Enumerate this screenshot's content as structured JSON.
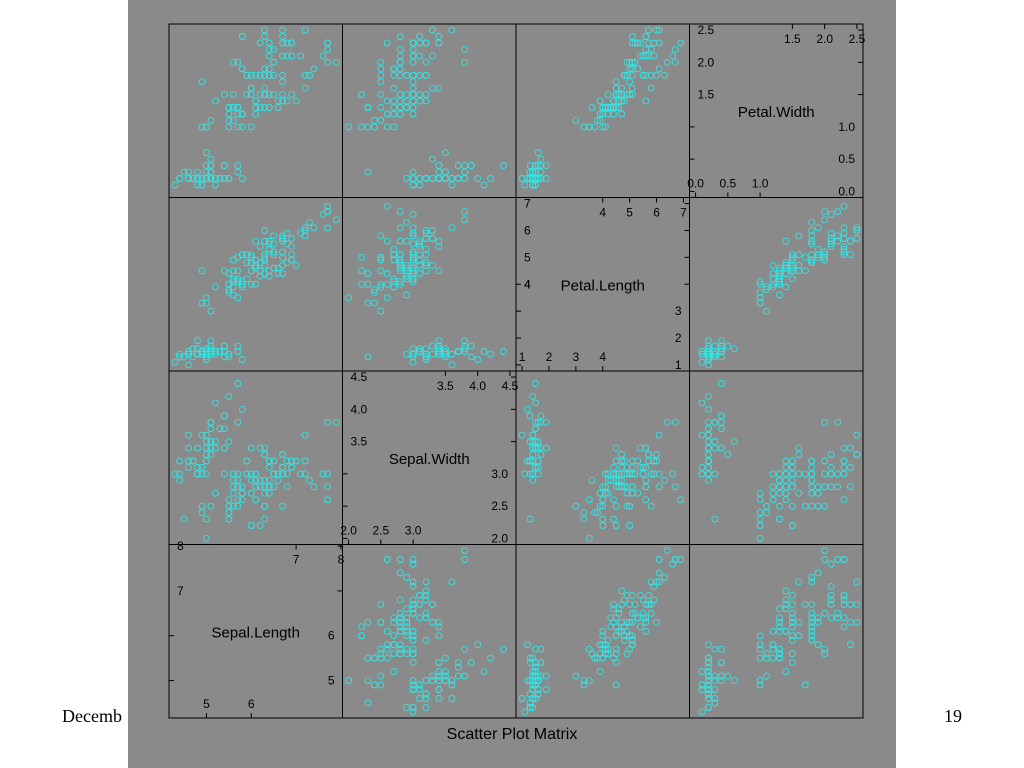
{
  "slide": {
    "footer_left": "Decemb",
    "page_number": "19"
  },
  "colors": {
    "panel_background": "#8a8a8a",
    "point": "#33e5e5",
    "frame": "#000000"
  },
  "chart_data": {
    "type": "scatter",
    "subtype": "scatter-matrix",
    "xlabel": "Scatter Plot Matrix",
    "marker": "open-circle",
    "variables": [
      {
        "name": "Sepal.Length",
        "range": [
          4.3,
          7.9
        ],
        "ticks_upper": [
          7,
          8
        ],
        "ticks_lower": [
          5,
          6
        ]
      },
      {
        "name": "Sepal.Width",
        "range": [
          2.0,
          4.5
        ],
        "ticks_upper": [
          3.5,
          4.0,
          4.5
        ],
        "ticks_lower": [
          2.0,
          2.5,
          3.0
        ]
      },
      {
        "name": "Petal.Length",
        "range": [
          1.0,
          7.0
        ],
        "ticks_upper": [
          4,
          5,
          6,
          7
        ],
        "ticks_lower": [
          1,
          2,
          3,
          4
        ]
      },
      {
        "name": "Petal.Width",
        "range": [
          0.0,
          2.5
        ],
        "ticks_upper": [
          1.5,
          2.0,
          2.5
        ],
        "ticks_lower": [
          0.0,
          0.5,
          1.0
        ]
      }
    ],
    "columns": [
      "Sepal.Length",
      "Sepal.Width",
      "Petal.Length",
      "Petal.Width"
    ],
    "points": [
      [
        5.1,
        3.5,
        1.4,
        0.2
      ],
      [
        4.9,
        3.0,
        1.4,
        0.2
      ],
      [
        4.7,
        3.2,
        1.3,
        0.2
      ],
      [
        4.6,
        3.1,
        1.5,
        0.2
      ],
      [
        5.0,
        3.6,
        1.4,
        0.2
      ],
      [
        5.4,
        3.9,
        1.7,
        0.4
      ],
      [
        4.6,
        3.4,
        1.4,
        0.3
      ],
      [
        5.0,
        3.4,
        1.5,
        0.2
      ],
      [
        4.4,
        2.9,
        1.4,
        0.2
      ],
      [
        4.9,
        3.1,
        1.5,
        0.1
      ],
      [
        5.4,
        3.7,
        1.5,
        0.2
      ],
      [
        4.8,
        3.4,
        1.6,
        0.2
      ],
      [
        4.8,
        3.0,
        1.4,
        0.1
      ],
      [
        4.3,
        3.0,
        1.1,
        0.1
      ],
      [
        5.8,
        4.0,
        1.2,
        0.2
      ],
      [
        5.7,
        4.4,
        1.5,
        0.4
      ],
      [
        5.4,
        3.9,
        1.3,
        0.4
      ],
      [
        5.1,
        3.5,
        1.4,
        0.3
      ],
      [
        5.7,
        3.8,
        1.7,
        0.3
      ],
      [
        5.1,
        3.8,
        1.5,
        0.3
      ],
      [
        5.4,
        3.4,
        1.7,
        0.2
      ],
      [
        5.1,
        3.7,
        1.5,
        0.4
      ],
      [
        4.6,
        3.6,
        1.0,
        0.2
      ],
      [
        5.1,
        3.3,
        1.7,
        0.5
      ],
      [
        4.8,
        3.4,
        1.9,
        0.2
      ],
      [
        5.0,
        3.0,
        1.6,
        0.2
      ],
      [
        5.0,
        3.4,
        1.6,
        0.4
      ],
      [
        5.2,
        3.5,
        1.5,
        0.2
      ],
      [
        5.2,
        3.4,
        1.4,
        0.2
      ],
      [
        4.7,
        3.2,
        1.6,
        0.2
      ],
      [
        4.8,
        3.1,
        1.6,
        0.2
      ],
      [
        5.4,
        3.4,
        1.5,
        0.4
      ],
      [
        5.2,
        4.1,
        1.5,
        0.1
      ],
      [
        5.5,
        4.2,
        1.4,
        0.2
      ],
      [
        4.9,
        3.1,
        1.5,
        0.2
      ],
      [
        5.0,
        3.2,
        1.2,
        0.2
      ],
      [
        5.5,
        3.5,
        1.3,
        0.2
      ],
      [
        4.9,
        3.6,
        1.4,
        0.1
      ],
      [
        4.4,
        3.0,
        1.3,
        0.2
      ],
      [
        5.1,
        3.4,
        1.5,
        0.2
      ],
      [
        5.0,
        3.5,
        1.3,
        0.3
      ],
      [
        4.5,
        2.3,
        1.3,
        0.3
      ],
      [
        4.4,
        3.2,
        1.3,
        0.2
      ],
      [
        5.0,
        3.5,
        1.6,
        0.6
      ],
      [
        5.1,
        3.8,
        1.9,
        0.4
      ],
      [
        4.8,
        3.0,
        1.4,
        0.3
      ],
      [
        5.1,
        3.8,
        1.6,
        0.2
      ],
      [
        4.6,
        3.2,
        1.4,
        0.2
      ],
      [
        5.3,
        3.7,
        1.5,
        0.2
      ],
      [
        5.0,
        3.3,
        1.4,
        0.2
      ],
      [
        7.0,
        3.2,
        4.7,
        1.4
      ],
      [
        6.4,
        3.2,
        4.5,
        1.5
      ],
      [
        6.9,
        3.1,
        4.9,
        1.5
      ],
      [
        5.5,
        2.3,
        4.0,
        1.3
      ],
      [
        6.5,
        2.8,
        4.6,
        1.5
      ],
      [
        5.7,
        2.8,
        4.5,
        1.3
      ],
      [
        6.3,
        3.3,
        4.7,
        1.6
      ],
      [
        4.9,
        2.4,
        3.3,
        1.0
      ],
      [
        6.6,
        2.9,
        4.6,
        1.3
      ],
      [
        5.2,
        2.7,
        3.9,
        1.4
      ],
      [
        5.0,
        2.0,
        3.5,
        1.0
      ],
      [
        5.9,
        3.0,
        4.2,
        1.5
      ],
      [
        6.0,
        2.2,
        4.0,
        1.0
      ],
      [
        6.1,
        2.9,
        4.7,
        1.4
      ],
      [
        5.6,
        2.9,
        3.6,
        1.3
      ],
      [
        6.7,
        3.1,
        4.4,
        1.4
      ],
      [
        5.6,
        3.0,
        4.5,
        1.5
      ],
      [
        5.8,
        2.7,
        4.1,
        1.0
      ],
      [
        6.2,
        2.2,
        4.5,
        1.5
      ],
      [
        5.6,
        2.5,
        3.9,
        1.1
      ],
      [
        5.9,
        3.2,
        4.8,
        1.8
      ],
      [
        6.1,
        2.8,
        4.0,
        1.3
      ],
      [
        6.3,
        2.5,
        4.9,
        1.5
      ],
      [
        6.1,
        2.8,
        4.7,
        1.2
      ],
      [
        6.4,
        2.9,
        4.3,
        1.3
      ],
      [
        6.6,
        3.0,
        4.4,
        1.4
      ],
      [
        6.8,
        2.8,
        4.8,
        1.4
      ],
      [
        6.7,
        3.0,
        5.0,
        1.7
      ],
      [
        6.0,
        2.9,
        4.5,
        1.5
      ],
      [
        5.7,
        2.6,
        3.5,
        1.0
      ],
      [
        5.5,
        2.4,
        3.8,
        1.1
      ],
      [
        5.5,
        2.4,
        3.7,
        1.0
      ],
      [
        5.8,
        2.7,
        3.9,
        1.2
      ],
      [
        6.0,
        2.7,
        5.1,
        1.6
      ],
      [
        5.4,
        3.0,
        4.5,
        1.5
      ],
      [
        6.0,
        3.4,
        4.5,
        1.6
      ],
      [
        6.7,
        3.1,
        4.7,
        1.5
      ],
      [
        6.3,
        2.3,
        4.4,
        1.3
      ],
      [
        5.6,
        3.0,
        4.1,
        1.3
      ],
      [
        5.5,
        2.5,
        4.0,
        1.3
      ],
      [
        5.5,
        2.6,
        4.4,
        1.2
      ],
      [
        6.1,
        3.0,
        4.6,
        1.4
      ],
      [
        5.8,
        2.6,
        4.0,
        1.2
      ],
      [
        5.0,
        2.3,
        3.3,
        1.0
      ],
      [
        5.6,
        2.7,
        4.2,
        1.3
      ],
      [
        5.7,
        3.0,
        4.2,
        1.2
      ],
      [
        5.7,
        2.9,
        4.2,
        1.3
      ],
      [
        6.2,
        2.9,
        4.3,
        1.3
      ],
      [
        5.1,
        2.5,
        3.0,
        1.1
      ],
      [
        5.7,
        2.8,
        4.1,
        1.3
      ],
      [
        6.3,
        3.3,
        6.0,
        2.5
      ],
      [
        5.8,
        2.7,
        5.1,
        1.9
      ],
      [
        7.1,
        3.0,
        5.9,
        2.1
      ],
      [
        6.3,
        2.9,
        5.6,
        1.8
      ],
      [
        6.5,
        3.0,
        5.8,
        2.2
      ],
      [
        7.6,
        3.0,
        6.6,
        2.1
      ],
      [
        4.9,
        2.5,
        4.5,
        1.7
      ],
      [
        7.3,
        2.9,
        6.3,
        1.8
      ],
      [
        6.7,
        2.5,
        5.8,
        1.8
      ],
      [
        7.2,
        3.6,
        6.1,
        2.5
      ],
      [
        6.5,
        3.2,
        5.1,
        2.0
      ],
      [
        6.4,
        2.7,
        5.3,
        1.9
      ],
      [
        6.8,
        3.0,
        5.5,
        2.1
      ],
      [
        5.7,
        2.5,
        5.0,
        2.0
      ],
      [
        5.8,
        2.8,
        5.1,
        2.4
      ],
      [
        6.4,
        3.2,
        5.3,
        2.3
      ],
      [
        6.5,
        3.0,
        5.5,
        1.8
      ],
      [
        7.7,
        3.8,
        6.7,
        2.2
      ],
      [
        7.7,
        2.6,
        6.9,
        2.3
      ],
      [
        6.0,
        2.2,
        5.0,
        1.5
      ],
      [
        6.9,
        3.2,
        5.7,
        2.3
      ],
      [
        5.6,
        2.8,
        4.9,
        2.0
      ],
      [
        7.7,
        2.8,
        6.7,
        2.0
      ],
      [
        6.3,
        2.7,
        4.9,
        1.8
      ],
      [
        6.7,
        3.3,
        5.7,
        2.1
      ],
      [
        7.2,
        3.2,
        6.0,
        1.8
      ],
      [
        6.2,
        2.8,
        4.8,
        1.8
      ],
      [
        6.1,
        3.0,
        4.9,
        1.8
      ],
      [
        6.4,
        2.8,
        5.6,
        2.1
      ],
      [
        7.2,
        3.0,
        5.8,
        1.6
      ],
      [
        7.4,
        2.8,
        6.1,
        1.9
      ],
      [
        7.9,
        3.8,
        6.4,
        2.0
      ],
      [
        6.4,
        2.8,
        5.6,
        2.2
      ],
      [
        6.3,
        2.8,
        5.1,
        1.5
      ],
      [
        6.1,
        2.6,
        5.6,
        1.4
      ],
      [
        7.7,
        3.0,
        6.1,
        2.3
      ],
      [
        6.3,
        3.4,
        5.6,
        2.4
      ],
      [
        6.4,
        3.1,
        5.5,
        1.8
      ],
      [
        6.0,
        3.0,
        4.8,
        1.8
      ],
      [
        6.9,
        3.1,
        5.4,
        2.1
      ],
      [
        6.7,
        3.1,
        5.6,
        2.4
      ],
      [
        6.9,
        3.1,
        5.1,
        2.3
      ],
      [
        5.8,
        2.7,
        5.1,
        1.9
      ],
      [
        6.8,
        3.2,
        5.9,
        2.3
      ],
      [
        6.7,
        3.3,
        5.7,
        2.5
      ],
      [
        6.7,
        3.0,
        5.2,
        2.3
      ],
      [
        6.3,
        2.5,
        5.0,
        1.9
      ],
      [
        6.5,
        3.0,
        5.2,
        2.0
      ],
      [
        6.2,
        3.4,
        5.4,
        2.3
      ],
      [
        5.9,
        3.0,
        5.1,
        1.8
      ]
    ]
  }
}
